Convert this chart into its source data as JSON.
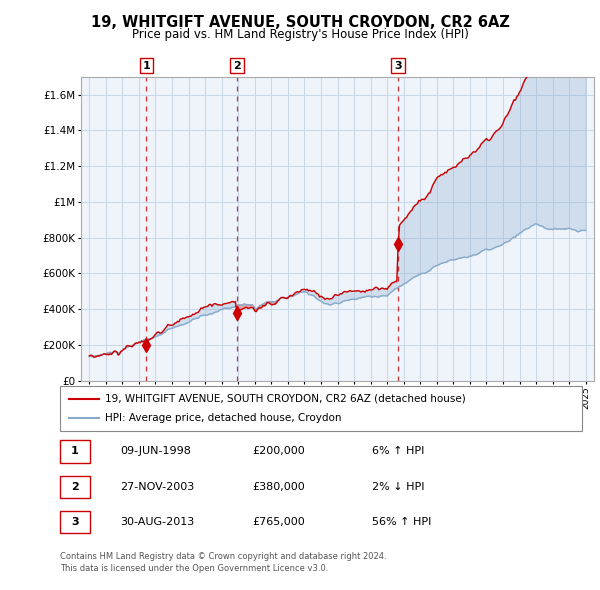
{
  "title": "19, WHITGIFT AVENUE, SOUTH CROYDON, CR2 6AZ",
  "subtitle": "Price paid vs. HM Land Registry's House Price Index (HPI)",
  "legend_property": "19, WHITGIFT AVENUE, SOUTH CROYDON, CR2 6AZ (detached house)",
  "legend_hpi": "HPI: Average price, detached house, Croydon",
  "footer": "Contains HM Land Registry data © Crown copyright and database right 2024.\nThis data is licensed under the Open Government Licence v3.0.",
  "sales": [
    {
      "label": "1",
      "date": "09-JUN-1998",
      "price": "£200,000",
      "hpi": "6% ↑ HPI",
      "year": 1998.44
    },
    {
      "label": "2",
      "date": "27-NOV-2003",
      "price": "£380,000",
      "hpi": "2% ↓ HPI",
      "year": 2003.92
    },
    {
      "label": "3",
      "date": "30-AUG-2013",
      "price": "£765,000",
      "hpi": "56% ↑ HPI",
      "year": 2013.66
    }
  ],
  "sale_values": [
    200000,
    380000,
    765000
  ],
  "ylim": [
    0,
    1700000
  ],
  "yticks": [
    0,
    200000,
    400000,
    600000,
    800000,
    1000000,
    1200000,
    1400000,
    1600000
  ],
  "ytick_labels": [
    "£0",
    "£200K",
    "£400K",
    "£600K",
    "£800K",
    "£1M",
    "£1.2M",
    "£1.4M",
    "£1.6M"
  ],
  "xlim_start": 1994.5,
  "xlim_end": 2025.5,
  "property_color": "#cc0000",
  "hpi_color": "#88aacc",
  "fill_color": "#ddeeff",
  "marker_border_color": "#cc0000",
  "dashed_vline_color": "#cc0000",
  "grid_color": "#c8d8e8",
  "bg_color": "#ffffff",
  "chart_bg_color": "#eef4fa"
}
